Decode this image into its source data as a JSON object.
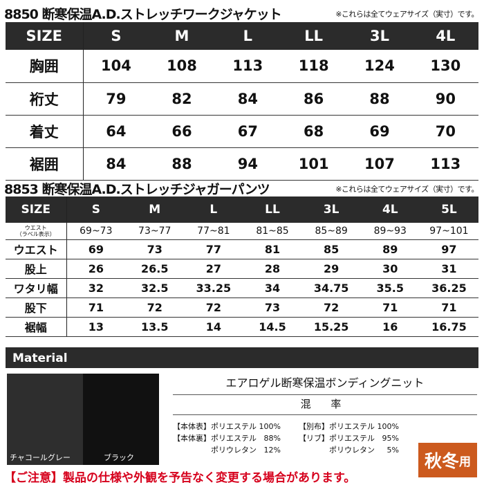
{
  "jacket": {
    "title": "8850 断寒保温A.D.ストレッチワークジャケット",
    "note": "※これらは全てウェアサイズ（実寸）です。",
    "header": [
      "SIZE",
      "S",
      "M",
      "L",
      "LL",
      "3L",
      "4L"
    ],
    "rows": [
      [
        "胸囲",
        "104",
        "108",
        "113",
        "118",
        "124",
        "130"
      ],
      [
        "裄丈",
        "79",
        "82",
        "84",
        "86",
        "88",
        "90"
      ],
      [
        "着丈",
        "64",
        "66",
        "67",
        "68",
        "69",
        "70"
      ],
      [
        "裾囲",
        "84",
        "88",
        "94",
        "101",
        "107",
        "113"
      ]
    ]
  },
  "pants": {
    "title": "8853 断寒保温A.D.ストレッチジャガーパンツ",
    "note": "※これらは全てウェアサイズ（実寸）です。",
    "header": [
      "SIZE",
      "S",
      "M",
      "L",
      "LL",
      "3L",
      "4L",
      "5L"
    ],
    "label_row": {
      "label1": "ウエスト",
      "label2": "（ラベル表示）",
      "values": [
        "69~73",
        "73~77",
        "77~81",
        "81~85",
        "85~89",
        "89~93",
        "97~101"
      ]
    },
    "rows": [
      [
        "ウエスト",
        "69",
        "73",
        "77",
        "81",
        "85",
        "89",
        "97"
      ],
      [
        "股上",
        "26",
        "26.5",
        "27",
        "28",
        "29",
        "30",
        "31"
      ],
      [
        "ワタリ幅",
        "32",
        "32.5",
        "33.25",
        "34",
        "34.75",
        "35.5",
        "36.25"
      ],
      [
        "股下",
        "71",
        "72",
        "72",
        "73",
        "72",
        "71",
        "71"
      ],
      [
        "裾幅",
        "13",
        "13.5",
        "14",
        "14.5",
        "15.25",
        "16",
        "16.75"
      ]
    ]
  },
  "material": {
    "heading": "Material",
    "colors": [
      "チャコールグレー",
      "ブラック"
    ],
    "fabric": "エアロゲル断寒保温ボンディングニット",
    "mix_label": "混 率",
    "comp_left": "【本体表】ポリエステル 100%\n【本体裏】ポリエステル   88%\n　　　　　ポリウレタン   12%",
    "comp_right": "【別布】ポリエステル 100%\n【リブ】ポリエステル   95%\n　　　　ポリウレタン     5%"
  },
  "badge": {
    "main": "秋冬",
    "sub": "用"
  },
  "caution": "【ご注意】製品の仕様や外観を予告なく変更する場合があります。",
  "colors": {
    "header": "#2b2b2b",
    "badge": "#cc5a1e",
    "caution": "#d6001c"
  }
}
